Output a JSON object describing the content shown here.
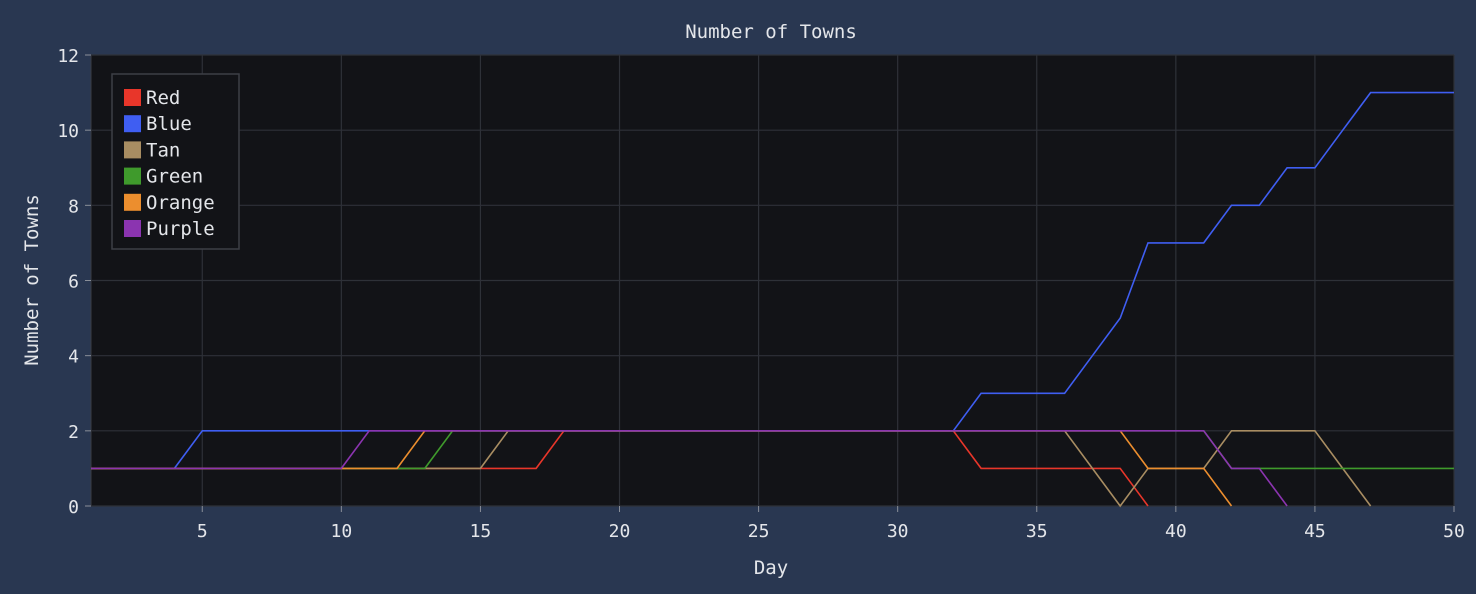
{
  "chart_data": {
    "type": "line",
    "title": "Number of Towns",
    "xlabel": "Day",
    "ylabel": "Number of Towns",
    "xlim": [
      1,
      50
    ],
    "ylim": [
      0,
      12
    ],
    "x_ticks": [
      5,
      10,
      15,
      20,
      25,
      30,
      35,
      40,
      45,
      50
    ],
    "y_ticks": [
      0,
      2,
      4,
      6,
      8,
      10,
      12
    ],
    "grid": true,
    "legend_position": "top-left",
    "colors": {
      "plot_background": "#121317",
      "figure_background": "#293751",
      "grid": "#2e3138",
      "text": "#e4e6ea"
    },
    "series": [
      {
        "name": "Red",
        "color": "#e8362a",
        "x": [
          1,
          17,
          18,
          32,
          33,
          38,
          39
        ],
        "y": [
          1,
          1,
          2,
          2,
          1,
          1,
          0
        ]
      },
      {
        "name": "Blue",
        "color": "#3f5ef2",
        "x": [
          1,
          4,
          5,
          32,
          33,
          36,
          37,
          38,
          39,
          41,
          42,
          43,
          44,
          45,
          46,
          47,
          50
        ],
        "y": [
          1,
          1,
          2,
          2,
          3,
          3,
          4,
          5,
          7,
          7,
          8,
          8,
          9,
          9,
          10,
          11,
          11
        ]
      },
      {
        "name": "Tan",
        "color": "#a88d62",
        "x": [
          1,
          15,
          16,
          36,
          37,
          38,
          39,
          41,
          42,
          45,
          46,
          47
        ],
        "y": [
          1,
          1,
          2,
          2,
          1,
          0,
          1,
          1,
          2,
          2,
          1,
          0
        ]
      },
      {
        "name": "Green",
        "color": "#3f9a2c",
        "x": [
          1,
          13,
          14,
          41,
          42,
          50
        ],
        "y": [
          1,
          1,
          2,
          2,
          1,
          1
        ]
      },
      {
        "name": "Orange",
        "color": "#ec8e2e",
        "x": [
          1,
          12,
          13,
          38,
          39,
          41,
          42
        ],
        "y": [
          1,
          1,
          2,
          2,
          1,
          1,
          0
        ]
      },
      {
        "name": "Purple",
        "color": "#8b34b0",
        "x": [
          1,
          10,
          11,
          41,
          42,
          43,
          44
        ],
        "y": [
          1,
          1,
          2,
          2,
          1,
          1,
          0
        ]
      }
    ]
  }
}
